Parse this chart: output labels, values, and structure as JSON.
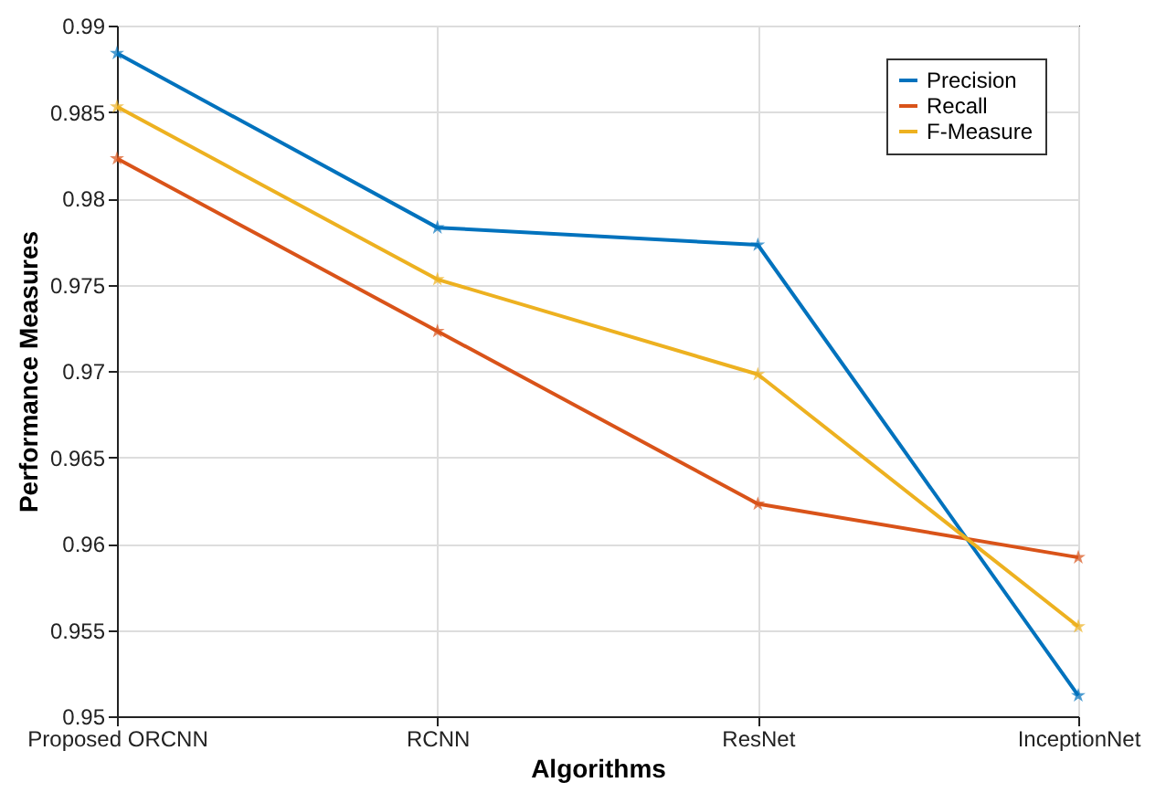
{
  "chart_data": {
    "type": "line",
    "xlabel": "Algorithms",
    "ylabel": "Performance Measures",
    "categories": [
      "Proposed ORCNN",
      "RCNN",
      "ResNet",
      "InceptionNet"
    ],
    "series": [
      {
        "name": "Precision",
        "color": "#0072bd",
        "values": [
          0.9884,
          0.9783,
          0.9773,
          0.9512
        ]
      },
      {
        "name": "Recall",
        "color": "#d95319",
        "values": [
          0.9823,
          0.9723,
          0.9623,
          0.9592
        ]
      },
      {
        "name": "F-Measure",
        "color": "#edb120",
        "values": [
          0.9853,
          0.9753,
          0.9698,
          0.9552
        ]
      }
    ],
    "ylim": [
      0.95,
      0.99
    ],
    "yticks": [
      {
        "value": 0.95,
        "label": "0.95"
      },
      0.955,
      {
        "value": 0.96,
        "label": "0.96"
      },
      0.965,
      {
        "value": 0.97,
        "label": "0.97"
      },
      0.975,
      {
        "value": 0.98,
        "label": "0.98"
      },
      0.985,
      {
        "value": 0.99,
        "label": "0.99"
      }
    ],
    "grid": true,
    "legend": "top right",
    "marker": "star",
    "line_style": "solid"
  }
}
